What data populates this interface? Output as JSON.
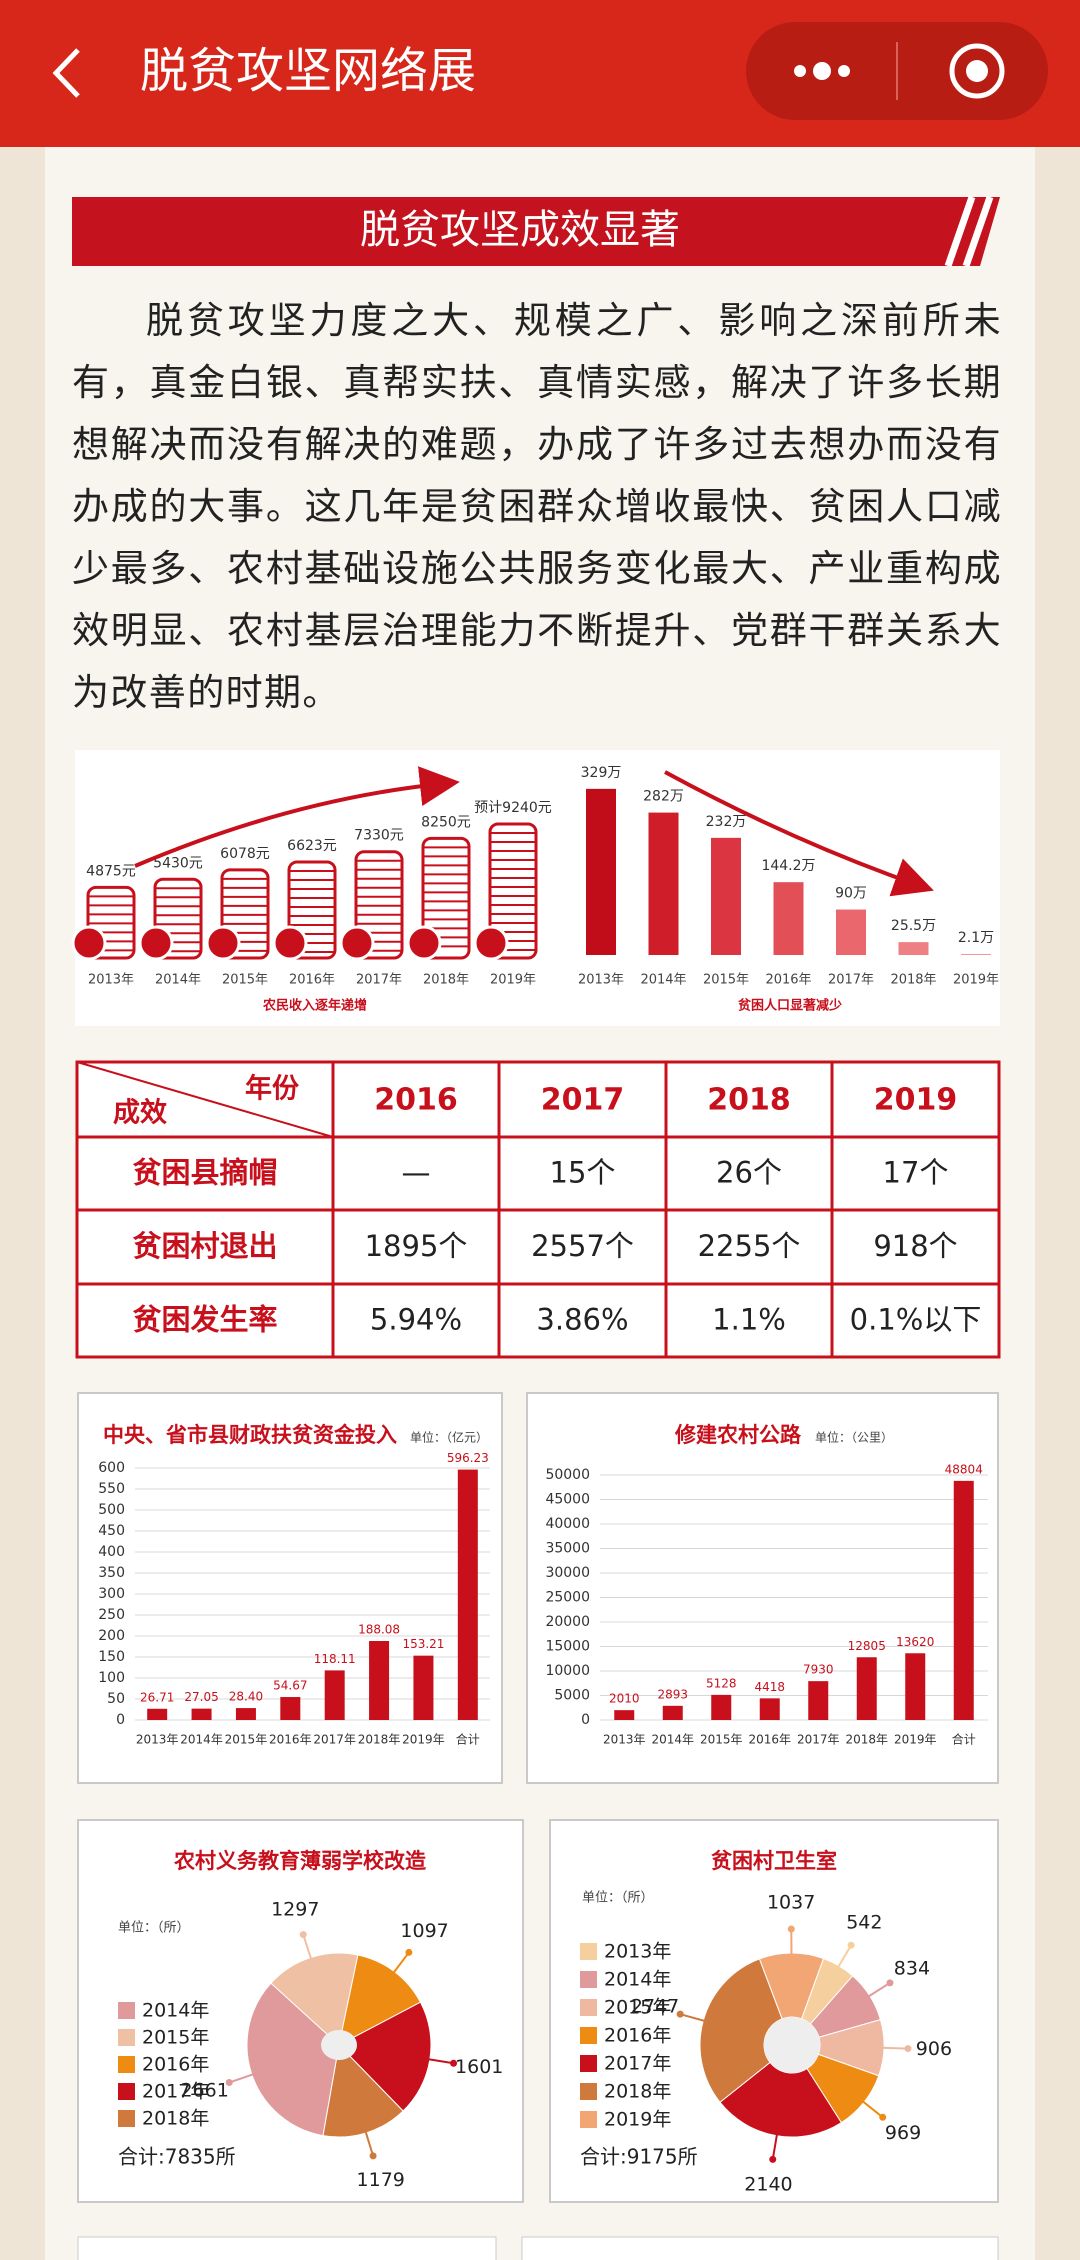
{
  "header": {
    "title": "脱贫攻坚网络展"
  },
  "section": {
    "title": "脱贫攻坚成效显著",
    "paragraph": "脱贫攻坚力度之大、规模之广、影响之深前所未有，真金白银、真帮实扶、真情实感，解决了许多长期想解决而没有解决的难题，办成了许多过去想办而没有办成的大事。这几年是贫困群众增收最快、贫困人口减少最多、农村基础设施公共服务变化最大、产业重构成效明显、农村基层治理能力不断提升、党群干群关系大为改善的时期。"
  },
  "table": {
    "corner_top": "年份",
    "corner_bottom": "成效",
    "columns": [
      "2016",
      "2017",
      "2018",
      "2019"
    ],
    "rows": [
      [
        "贫困县摘帽",
        "—",
        "15个",
        "26个",
        "17个"
      ],
      [
        "贫困村退出",
        "1895个",
        "2557个",
        "2255个",
        "918个"
      ],
      [
        "贫困发生率",
        "5.94%",
        "3.86%",
        "1.1%",
        "0.1%以下"
      ]
    ]
  },
  "chart_data": [
    {
      "type": "coins",
      "caption": "农民收入逐年递增",
      "categories": [
        "2013年",
        "2014年",
        "2015年",
        "2016年",
        "2017年",
        "2018年",
        "2019年"
      ],
      "values": [
        4875,
        5430,
        6078,
        6623,
        7330,
        8250,
        9240
      ],
      "value_labels": [
        "4875元",
        "5430元",
        "6078元",
        "6623元",
        "7330元",
        "8250元",
        "预计9240元"
      ],
      "color": "#c8101c"
    },
    {
      "type": "bar",
      "caption": "贫困人口显著减少",
      "categories": [
        "2013年",
        "2014年",
        "2015年",
        "2016年",
        "2017年",
        "2018年",
        "2019年"
      ],
      "values": [
        329,
        282,
        232,
        144.2,
        90,
        25.5,
        2.1
      ],
      "value_labels": [
        "329万",
        "282万",
        "232万",
        "144.2万",
        "90万",
        "25.5万",
        "2.1万"
      ],
      "colors": [
        "#c00d19",
        "#cf1d29",
        "#da3540",
        "#e24f57",
        "#e9676d",
        "#ee8084",
        "#f29a9d"
      ]
    },
    {
      "type": "bar",
      "title": "中央、省市县财政扶贫资金投入",
      "unit": "单位：（亿元）",
      "categories": [
        "2013年",
        "2014年",
        "2015年",
        "2016年",
        "2017年",
        "2018年",
        "2019年",
        "合计"
      ],
      "values": [
        26.71,
        27.05,
        28.4,
        54.67,
        118.11,
        188.08,
        153.21,
        596.23
      ],
      "value_labels": [
        "26.71",
        "27.05",
        "28.40",
        "54.67",
        "118.11",
        "188.08",
        "153.21",
        "596.23"
      ],
      "color": "#c8101c",
      "ylim": [
        0,
        600
      ],
      "yticks": [
        0,
        50,
        100,
        150,
        200,
        250,
        300,
        350,
        400,
        450,
        500,
        550,
        600
      ],
      "grid": true
    },
    {
      "type": "bar",
      "title": "修建农村公路",
      "unit": "单位：（公里）",
      "categories": [
        "2013年",
        "2014年",
        "2015年",
        "2016年",
        "2017年",
        "2018年",
        "2019年",
        "合计"
      ],
      "values": [
        2010,
        2893,
        5128,
        4418,
        7930,
        12805,
        13620,
        48804
      ],
      "color": "#c8101c",
      "ylim": [
        0,
        50000
      ],
      "yticks": [
        0,
        5000,
        10000,
        15000,
        20000,
        25000,
        30000,
        35000,
        40000,
        45000,
        50000
      ],
      "grid": true
    },
    {
      "type": "pie",
      "title": "农村义务教育薄弱学校改造",
      "unit": "单位：（所）",
      "categories": [
        "2014年",
        "2015年",
        "2016年",
        "2017年",
        "2018年"
      ],
      "values": [
        2661,
        1297,
        1097,
        1601,
        1179
      ],
      "colors": [
        "#e09a9c",
        "#efc0a4",
        "#ee8b12",
        "#c8101c",
        "#cf7a3c"
      ],
      "total_label": "合计:7835所"
    },
    {
      "type": "pie",
      "title": "贫困村卫生室",
      "unit": "单位：（所）",
      "categories": [
        "2013年",
        "2014年",
        "2015年",
        "2016年",
        "2017年",
        "2018年",
        "2019年"
      ],
      "values": [
        542,
        834,
        906,
        969,
        2140,
        2747,
        1037
      ],
      "colors": [
        "#f6cf9e",
        "#e09a9c",
        "#efb8a0",
        "#ee8b12",
        "#c8101c",
        "#cf7a3c",
        "#f2a673"
      ],
      "total_label": "合计:9175所"
    }
  ]
}
